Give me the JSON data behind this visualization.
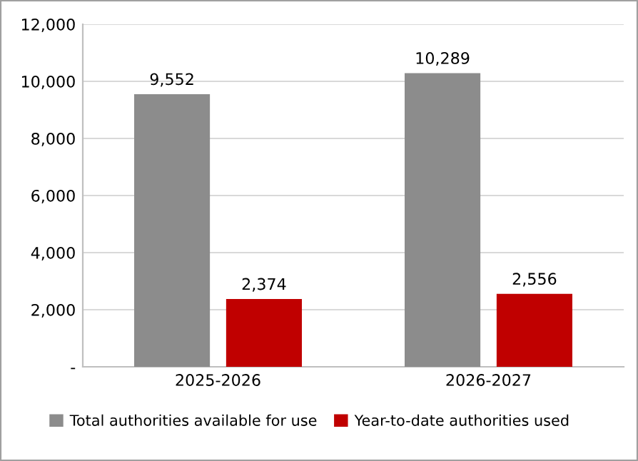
{
  "chart_data": {
    "type": "bar",
    "categories": [
      "2025-2026",
      "2026-2027"
    ],
    "series": [
      {
        "name": "Total authorities available for use",
        "color": "#8c8c8c",
        "values": [
          9552,
          10289
        ],
        "value_labels": [
          "9,552",
          "10,289"
        ]
      },
      {
        "name": "Year-to-date authorities used",
        "color": "#c00000",
        "values": [
          2374,
          2556
        ],
        "value_labels": [
          "2,374",
          "2,556"
        ]
      }
    ],
    "ylim": [
      0,
      12000
    ],
    "yticks": [
      {
        "value": 0,
        "label": "-"
      },
      {
        "value": 2000,
        "label": "2,000"
      },
      {
        "value": 4000,
        "label": "4,000"
      },
      {
        "value": 6000,
        "label": "6,000"
      },
      {
        "value": 8000,
        "label": "8,000"
      },
      {
        "value": 10000,
        "label": "10,000"
      },
      {
        "value": 12000,
        "label": "12,000"
      }
    ],
    "grid": "y",
    "legend": "bottom"
  }
}
